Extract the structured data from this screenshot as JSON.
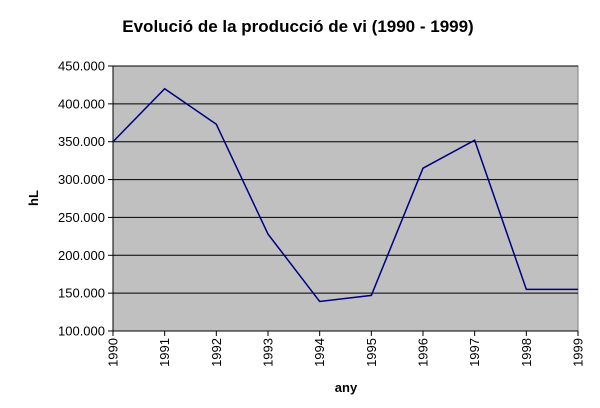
{
  "chart_data": {
    "type": "line",
    "title": "Evolució de la producció de vi (1990 - 1999)",
    "xlabel": "any",
    "ylabel": "hL",
    "categories": [
      "1990",
      "1991",
      "1992",
      "1993",
      "1994",
      "1995",
      "1996",
      "1997",
      "1998",
      "1999"
    ],
    "y_tick_labels": [
      "100.000",
      "150.000",
      "200.000",
      "250.000",
      "300.000",
      "350.000",
      "400.000",
      "450.000"
    ],
    "y_ticks": [
      100000,
      150000,
      200000,
      250000,
      300000,
      350000,
      400000,
      450000
    ],
    "ylim": [
      100000,
      450000
    ],
    "series": [
      {
        "values": [
          350000,
          420000,
          373000,
          228000,
          139000,
          147000,
          315000,
          352000,
          155000,
          155000
        ]
      }
    ],
    "grid": true,
    "legend": "none",
    "colors": {
      "plot_background": "#c0c0c0",
      "line": "#000080",
      "gridline": "#000000",
      "axis": "#808080"
    }
  }
}
